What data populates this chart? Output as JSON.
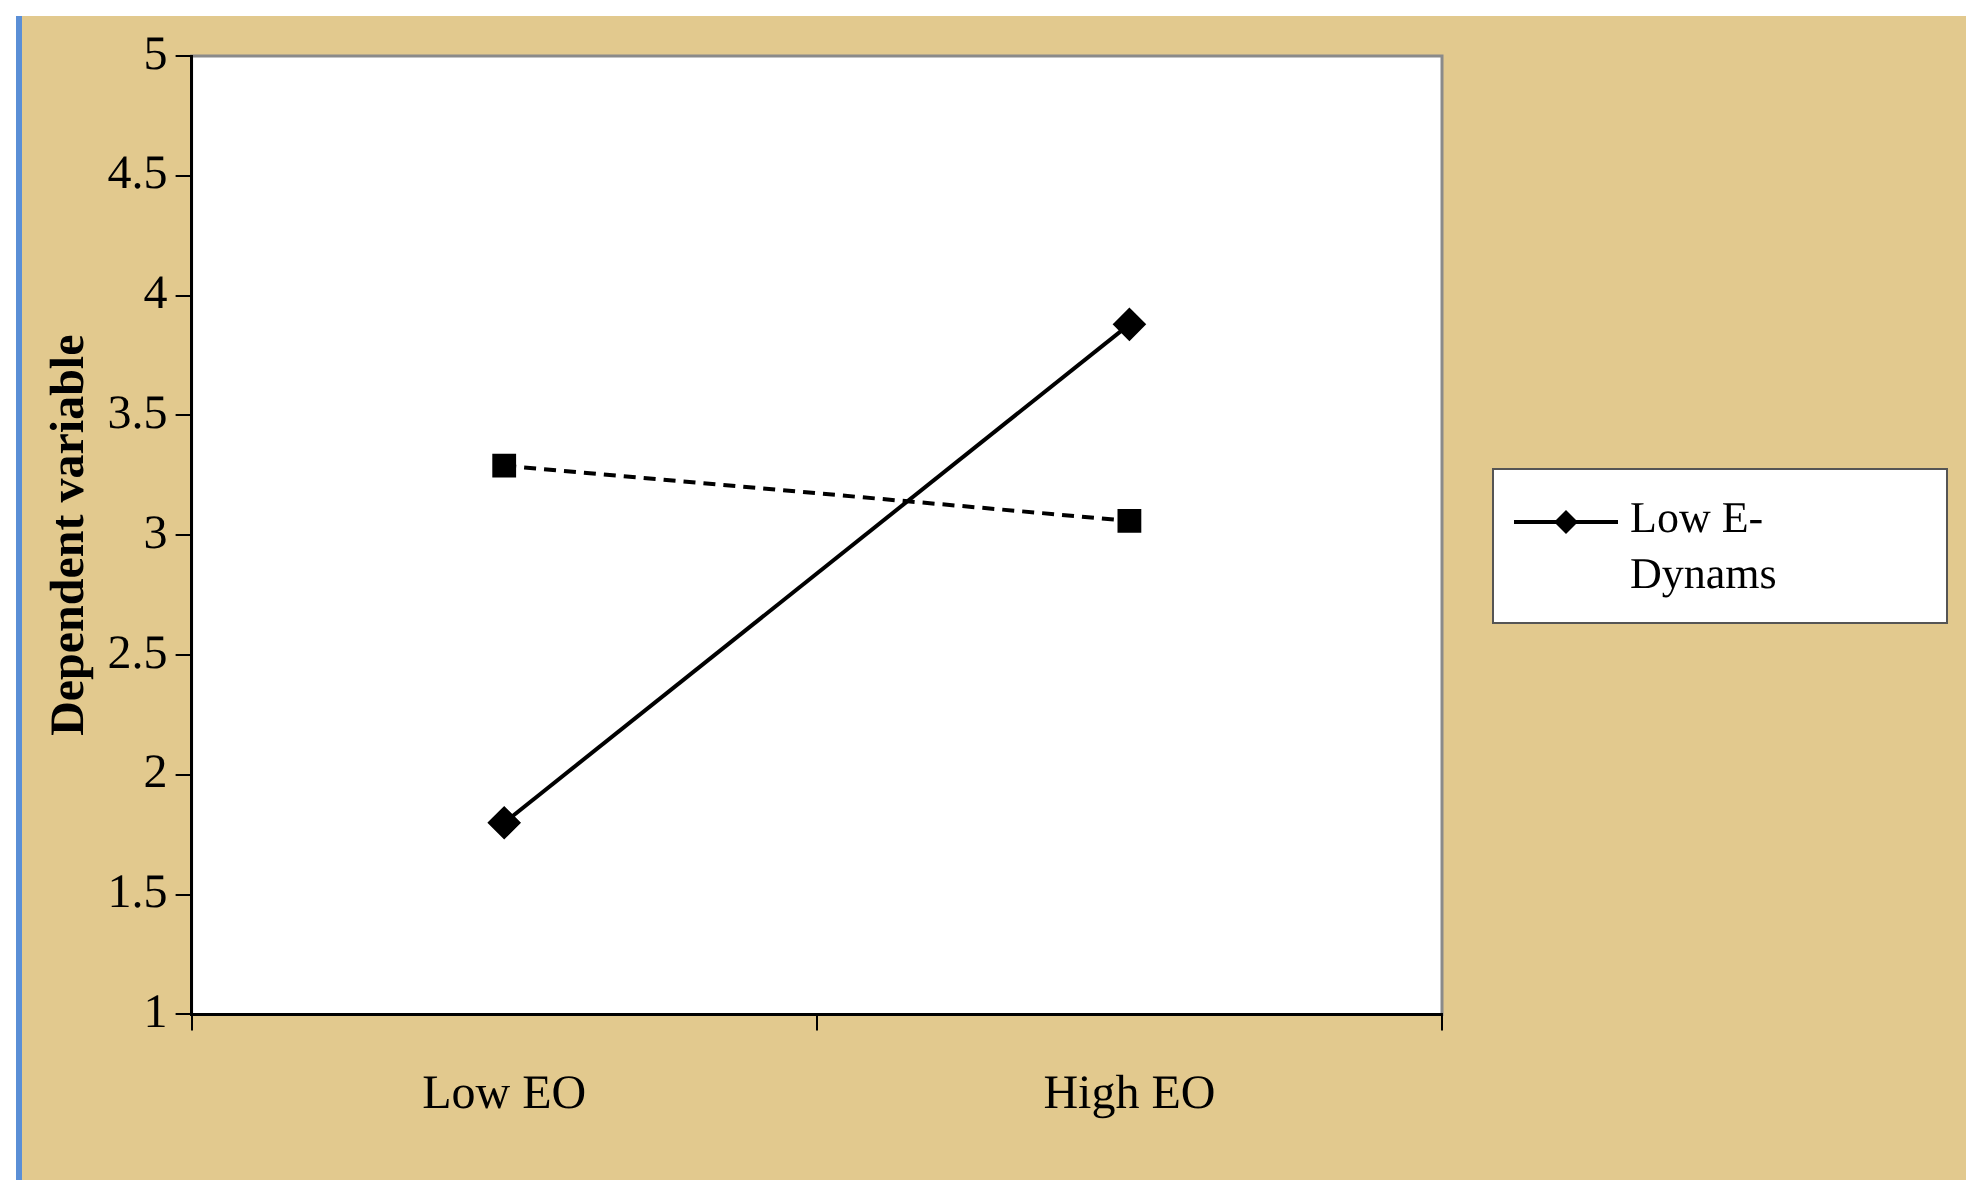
{
  "chart_data": {
    "type": "line",
    "ylabel": "Dependent variable",
    "categories": [
      "Low EO",
      "High EO"
    ],
    "series": [
      {
        "name": "Low E-Dynams",
        "color": "#000000",
        "values": [
          1.8,
          3.88
        ],
        "marker": "diamond",
        "line_style": "solid"
      },
      {
        "color": "#000000",
        "values": [
          3.29,
          3.06
        ],
        "marker": "square",
        "line_style": "dashed"
      }
    ],
    "ylim": [
      1,
      5
    ],
    "yticks": [
      1,
      1.5,
      2,
      2.5,
      3,
      3.5,
      4,
      4.5,
      5
    ],
    "grid": false,
    "legend": "right"
  }
}
